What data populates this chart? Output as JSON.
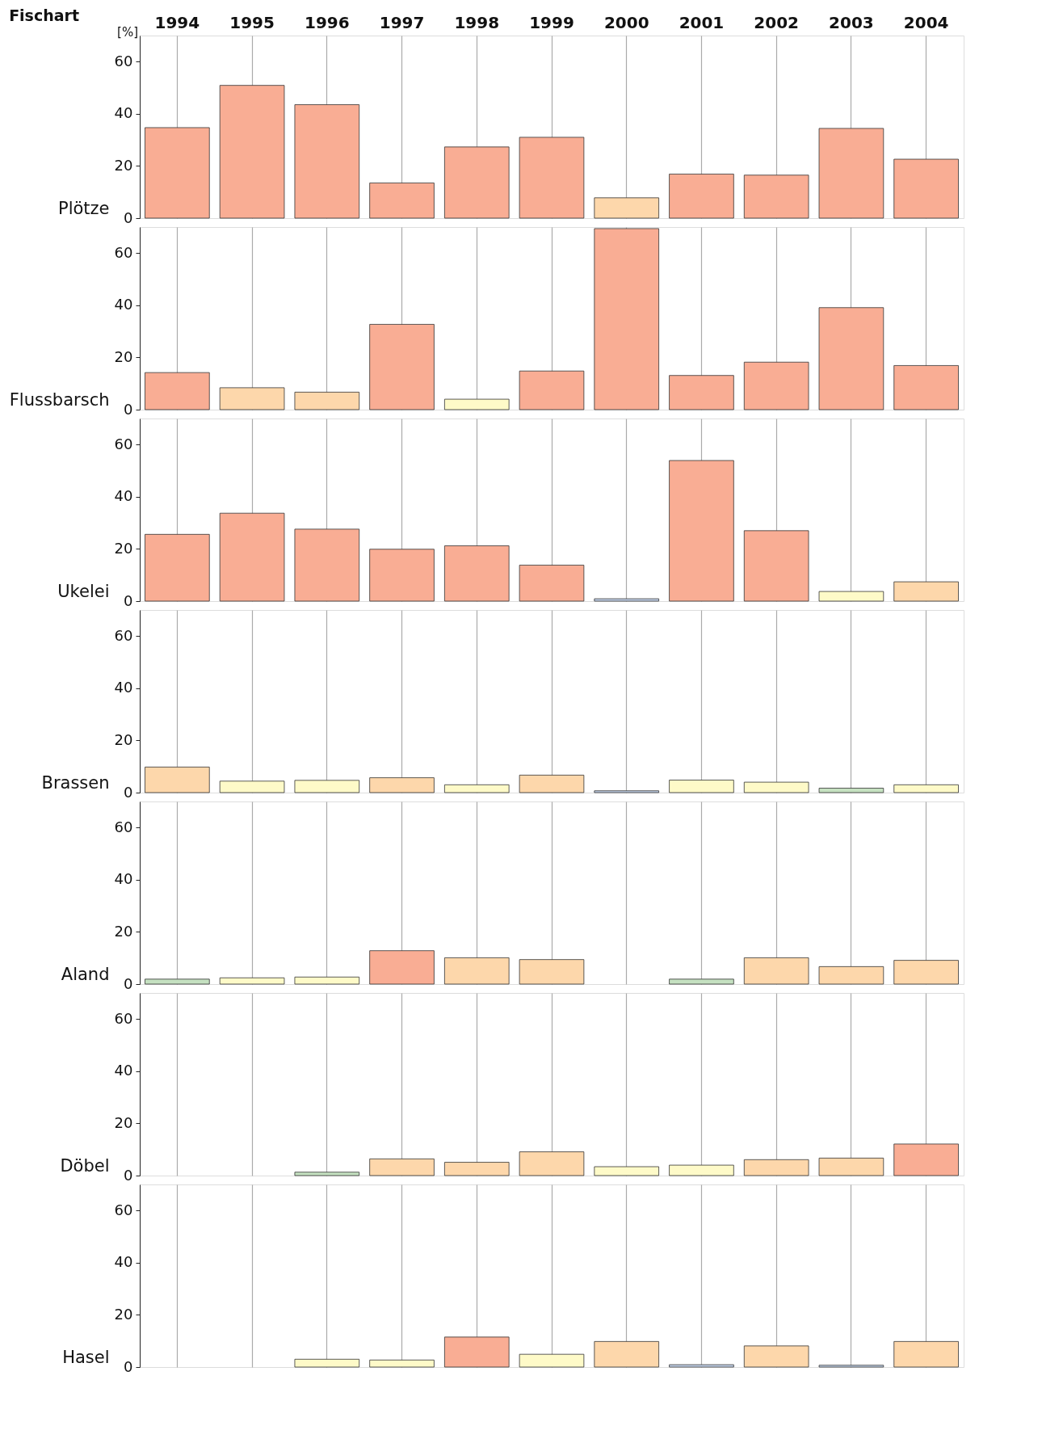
{
  "chart_data": [
    {
      "type": "bar",
      "ylabel": "Plötze",
      "annotations": [
        "Fischart",
        "[%]"
      ],
      "categories": [
        "1994",
        "1995",
        "1996",
        "1997",
        "1998",
        "1999",
        "2000",
        "2001",
        "2002",
        "2003",
        "2004"
      ],
      "values": [
        34.7,
        50.9,
        43.5,
        13.5,
        27.3,
        31,
        7.8,
        16.9,
        16.5,
        34.4,
        22.6
      ],
      "colors": [
        "#f9ad94",
        "#f9ad94",
        "#f9ad94",
        "#f9ad94",
        "#f9ad94",
        "#f9ad94",
        "#fdd7ab",
        "#f9ad94",
        "#f9ad94",
        "#f9ad94",
        "#f9ad94"
      ],
      "ylim": [
        0,
        70
      ],
      "yticks": [
        0,
        20,
        40,
        60
      ],
      "grid": "x"
    },
    {
      "type": "bar",
      "ylabel": "Flussbarsch",
      "categories": [
        "1994",
        "1995",
        "1996",
        "1997",
        "1998",
        "1999",
        "2000",
        "2001",
        "2002",
        "2003",
        "2004"
      ],
      "values": [
        14.2,
        8.4,
        6.7,
        32.7,
        4.0,
        14.8,
        69.4,
        13.1,
        18.2,
        39.1,
        16.9
      ],
      "colors": [
        "#f9ad94",
        "#fdd7ab",
        "#fdd7ab",
        "#f9ad94",
        "#fefac8",
        "#f9ad94",
        "#f9ad94",
        "#f9ad94",
        "#f9ad94",
        "#f9ad94",
        "#f9ad94"
      ],
      "ylim": [
        0,
        70
      ],
      "yticks": [
        0,
        20,
        40,
        60
      ],
      "grid": "x",
      "tick_labels": "y"
    },
    {
      "type": "bar",
      "ylabel": "Ukelei",
      "categories": [
        "1994",
        "1995",
        "1996",
        "1997",
        "1998",
        "1999",
        "2000",
        "2001",
        "2002",
        "2003",
        "2004"
      ],
      "values": [
        25.6,
        33.7,
        27.6,
        19.9,
        21.2,
        13.8,
        0.9,
        53.9,
        27,
        3.7,
        7.4
      ],
      "colors": [
        "#f9ad94",
        "#f9ad94",
        "#f9ad94",
        "#f9ad94",
        "#f9ad94",
        "#f9ad94",
        "#c6d5ec",
        "#f9ad94",
        "#f9ad94",
        "#fefac8",
        "#fdd7ab"
      ],
      "ylim": [
        0,
        70
      ],
      "yticks": [
        0,
        20,
        40,
        60
      ],
      "grid": "x",
      "tick_labels": "y"
    },
    {
      "type": "bar",
      "ylabel": "Brassen",
      "categories": [
        "1994",
        "1995",
        "1996",
        "1997",
        "1998",
        "1999",
        "2000",
        "2001",
        "2002",
        "2003",
        "2004"
      ],
      "values": [
        9.8,
        4.4,
        4.7,
        5.7,
        3.0,
        6.7,
        0.7,
        4.8,
        4.0,
        1.7,
        3.0
      ],
      "colors": [
        "#fdd7ab",
        "#fefac8",
        "#fefac8",
        "#fdd7ab",
        "#fefac8",
        "#fdd7ab",
        "#c6d5ec",
        "#fefac8",
        "#fefac8",
        "#c5e1c1",
        "#fefac8"
      ],
      "ylim": [
        0,
        70
      ],
      "yticks": [
        0,
        20,
        40,
        60
      ],
      "grid": "x",
      "tick_labels": "y"
    },
    {
      "type": "bar",
      "ylabel": "Aland",
      "categories": [
        "1994",
        "1995",
        "1996",
        "1997",
        "1998",
        "1999",
        "2000",
        "2001",
        "2002",
        "2003",
        "2004"
      ],
      "values": [
        1.9,
        2.4,
        2.7,
        12.8,
        10.1,
        9.4,
        null,
        1.9,
        10.1,
        6.7,
        9.1
      ],
      "colors": [
        "#c5e1c1",
        "#fefac8",
        "#fefac8",
        "#f9ad94",
        "#fdd7ab",
        "#fdd7ab",
        "#fdd7ab",
        "#c5e1c1",
        "#fdd7ab",
        "#fdd7ab",
        "#fdd7ab"
      ],
      "ylim": [
        0,
        70
      ],
      "yticks": [
        0,
        20,
        40,
        60
      ],
      "grid": "x",
      "tick_labels": "y"
    },
    {
      "type": "bar",
      "ylabel": "Döbel",
      "categories": [
        "1994",
        "1995",
        "1996",
        "1997",
        "1998",
        "1999",
        "2000",
        "2001",
        "2002",
        "2003",
        "2004"
      ],
      "values": [
        null,
        null,
        1.3,
        6.4,
        5.1,
        9.1,
        3.4,
        4.0,
        6.1,
        6.7,
        12.1
      ],
      "colors": [
        "#fdd7ab",
        "#fdd7ab",
        "#c5e1c1",
        "#fdd7ab",
        "#fdd7ab",
        "#fdd7ab",
        "#fefac8",
        "#fefac8",
        "#fdd7ab",
        "#fdd7ab",
        "#f9ad94"
      ],
      "ylim": [
        0,
        70
      ],
      "yticks": [
        0,
        20,
        40,
        60
      ],
      "grid": "x",
      "tick_labels": "y"
    },
    {
      "type": "bar",
      "ylabel": "Hasel",
      "categories": [
        "1994",
        "1995",
        "1996",
        "1997",
        "1998",
        "1999",
        "2000",
        "2001",
        "2002",
        "2003",
        "2004"
      ],
      "values": [
        null,
        null,
        3.0,
        2.7,
        11.5,
        4.9,
        9.8,
        0.9,
        8.1,
        0.7,
        9.8
      ],
      "colors": [
        "#fdd7ab",
        "#fdd7ab",
        "#fefac8",
        "#fefac8",
        "#f9ad94",
        "#fefac8",
        "#fdd7ab",
        "#c6d5ec",
        "#fdd7ab",
        "#c6d5ec",
        "#fdd7ab"
      ],
      "ylim": [
        0,
        70
      ],
      "yticks": [
        0,
        20,
        40,
        60
      ],
      "grid": "x",
      "tick_labels": "y"
    }
  ]
}
